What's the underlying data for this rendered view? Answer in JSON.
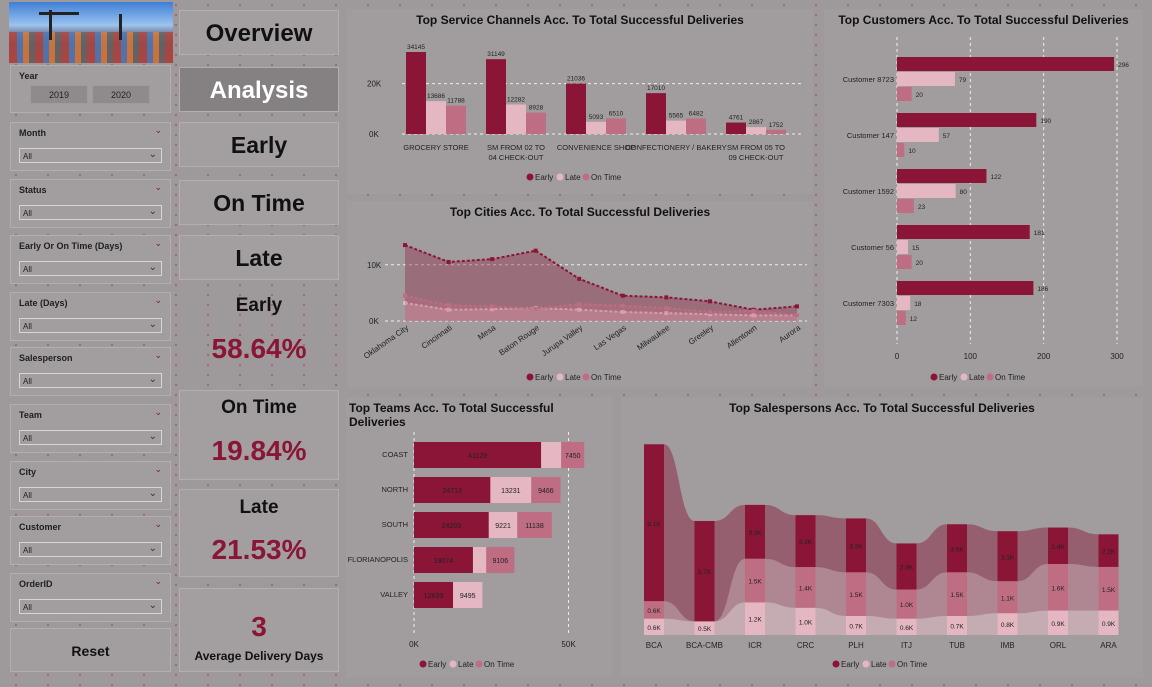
{
  "filters": {
    "year": {
      "label": "Year",
      "options": [
        "2019",
        "2020"
      ]
    },
    "items": [
      {
        "label": "Month",
        "value": "All"
      },
      {
        "label": "Status",
        "value": "All"
      },
      {
        "label": "Early Or On Time (Days)",
        "value": "All"
      },
      {
        "label": "Late (Days)",
        "value": "All"
      },
      {
        "label": "Salesperson",
        "value": "All"
      },
      {
        "label": "Team",
        "value": "All"
      },
      {
        "label": "City",
        "value": "All"
      },
      {
        "label": "Customer",
        "value": "All"
      },
      {
        "label": "OrderID",
        "value": "All"
      }
    ],
    "reset_label": "Reset"
  },
  "nav": {
    "overview": "Overview",
    "analysis": "Analysis",
    "early": "Early",
    "on_time": "On Time",
    "late": "Late"
  },
  "kpis": {
    "early": {
      "label": "Early",
      "value": "58.64%"
    },
    "on_time": {
      "label": "On Time",
      "value": "19.84%"
    },
    "late": {
      "label": "Late",
      "value": "21.53%"
    },
    "avg_days": {
      "value": "3",
      "label": "Average Delivery Days"
    }
  },
  "legend": {
    "early": "Early",
    "late": "Late",
    "on_time": "On Time"
  },
  "colors": {
    "early": "#8a1536",
    "late": "#e4b7c2",
    "on_time": "#bf6d83",
    "background": "#9e9a9b"
  },
  "chart_data": [
    {
      "id": "service_channels",
      "type": "bar",
      "title": "Top Service Channels Acc. To Total Successful Deliveries",
      "categories": [
        "GROCERY STORE",
        "SM FROM 02 TO 04 CHECK-OUT",
        "CONVENIENCE SHOP",
        "CONFECTIONERY / BAKERY",
        "SM FROM 05 TO 09 CHECK-OUT"
      ],
      "series": [
        {
          "name": "Early",
          "values": [
            34145,
            31149,
            21036,
            17010,
            4761
          ]
        },
        {
          "name": "Late",
          "values": [
            13686,
            12282,
            5093,
            5565,
            2867
          ]
        },
        {
          "name": "On Time",
          "values": [
            11788,
            8928,
            6510,
            6482,
            1752
          ]
        }
      ],
      "yticks": [
        "0K",
        "20K"
      ],
      "ylim": [
        0,
        40000
      ]
    },
    {
      "id": "cities",
      "type": "area",
      "title": "Top Cities Acc. To Total Successful Deliveries",
      "categories": [
        "Oklahoma City",
        "Cincinnati",
        "Mesa",
        "Baton Rouge",
        "Jurupa Valley",
        "Las Vegas",
        "Milwaukee",
        "Greeley",
        "Allentown",
        "Aurora"
      ],
      "series": [
        {
          "name": "Early",
          "values": [
            13500,
            10500,
            11000,
            12500,
            7500,
            4500,
            4200,
            3500,
            2000,
            2600
          ]
        },
        {
          "name": "Late",
          "values": [
            3200,
            2000,
            2100,
            2300,
            2000,
            1600,
            1400,
            1200,
            1000,
            1000
          ]
        },
        {
          "name": "On Time",
          "values": [
            4500,
            2800,
            2600,
            2200,
            3000,
            2700,
            2300,
            1600,
            1800,
            1000
          ]
        }
      ],
      "yticks": [
        "0K",
        "10K"
      ],
      "ylim": [
        0,
        16000
      ]
    },
    {
      "id": "customers",
      "type": "bar",
      "title": "Top Customers Acc. To Total Successful Deliveries",
      "categories": [
        "Customer 8723",
        "Customer 147",
        "Customer 1592",
        "Customer 56",
        "Customer 7303"
      ],
      "series": [
        {
          "name": "Early",
          "values": [
            296,
            190,
            122,
            181,
            186
          ]
        },
        {
          "name": "Late",
          "values": [
            79,
            57,
            80,
            15,
            18
          ]
        },
        {
          "name": "On Time",
          "values": [
            20,
            10,
            23,
            20,
            12
          ]
        }
      ],
      "xticks": [
        0,
        100,
        200,
        300
      ],
      "xlim": [
        0,
        300
      ]
    },
    {
      "id": "teams",
      "type": "bar",
      "title": "Top Teams Acc. To Total Successful Deliveries",
      "categories": [
        "COAST",
        "NORTH",
        "SOUTH",
        "FLORIANOPOLIS",
        "VALLEY"
      ],
      "series": [
        {
          "name": "Early",
          "values": [
            41129,
            24713,
            24203,
            19074,
            12633
          ]
        },
        {
          "name": "Late",
          "values": [
            6500,
            13231,
            9221,
            4300,
            9495
          ]
        },
        {
          "name": "On Time",
          "values": [
            7450,
            9466,
            11138,
            9106,
            0
          ]
        }
      ],
      "value_labels": {
        "Early": [
          "41129",
          "24713",
          "24203",
          "19074",
          "12633"
        ],
        "Late": [
          "",
          "13231",
          "9221",
          "",
          "9495"
        ],
        "On Time": [
          "7450",
          "9466",
          "11138",
          "9106",
          ""
        ]
      },
      "xticks": [
        "0K",
        "50K"
      ],
      "xlim": [
        0,
        55000
      ]
    },
    {
      "id": "salespersons",
      "type": "bar",
      "title": "Top Salespersons Acc. To Total Successful Deliveries",
      "categories": [
        "BCA",
        "BCA-CMB",
        "ICR",
        "CRC",
        "PLH",
        "ITJ",
        "TUB",
        "IMB",
        "ORL",
        "ARA"
      ],
      "series": [
        {
          "name": "Early",
          "values": [
            "8.1K",
            "5.7K",
            "3.3K",
            "3.2K",
            "3.3K",
            "2.9K",
            "3.0K",
            "3.1K",
            "2.4K",
            "2.2K"
          ]
        },
        {
          "name": "Late",
          "values": [
            "0.6K",
            "0.5K",
            "1.2K",
            "1.0K",
            "0.7K",
            "0.6K",
            "0.7K",
            "0.8K",
            "0.9K",
            "0.9K"
          ]
        },
        {
          "name": "On Time",
          "values": [
            "0.6K",
            "",
            "1.5K",
            "1.4K",
            "1.5K",
            "1.0K",
            "1.5K",
            "1.1K",
            "1.6K",
            "1.5K"
          ]
        }
      ]
    }
  ]
}
